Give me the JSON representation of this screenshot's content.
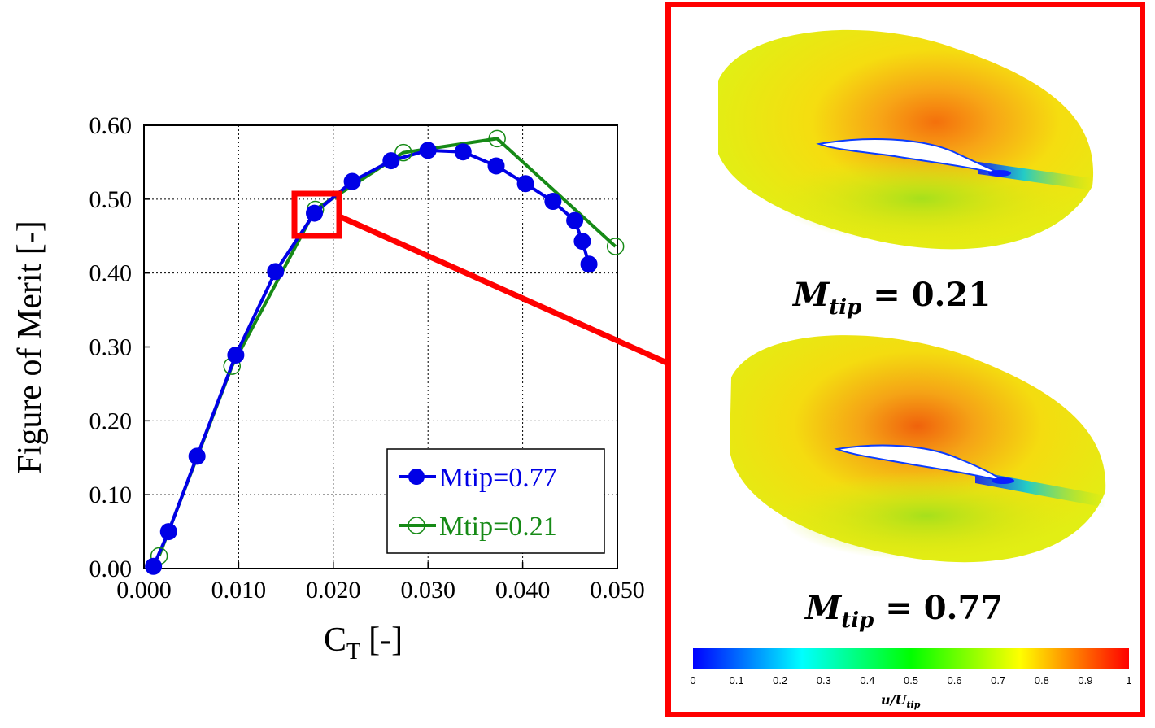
{
  "chart_data": {
    "type": "line",
    "xlabel": "C",
    "xlabel_sub": "T",
    "xlabel_unit": "[-]",
    "ylabel": "Figure of Merit [-]",
    "xlim": [
      0.0,
      0.05
    ],
    "ylim": [
      0.0,
      0.6
    ],
    "xticks": [
      "0.000",
      "0.010",
      "0.020",
      "0.030",
      "0.040",
      "0.050"
    ],
    "yticks": [
      "0.00",
      "0.10",
      "0.20",
      "0.30",
      "0.40",
      "0.50",
      "0.60"
    ],
    "grid": true,
    "legend_position": "bottom-right",
    "series": [
      {
        "name": "Mtip=0.77",
        "color": "#0000e6",
        "marker": "filled-circle",
        "x": [
          0.001,
          0.0026,
          0.0056,
          0.0097,
          0.0139,
          0.018,
          0.022,
          0.0261,
          0.03,
          0.0337,
          0.0372,
          0.0403,
          0.0432,
          0.0455,
          0.0463,
          0.047
        ],
        "y": [
          0.003,
          0.05,
          0.152,
          0.289,
          0.402,
          0.481,
          0.524,
          0.552,
          0.566,
          0.564,
          0.545,
          0.521,
          0.497,
          0.471,
          0.443,
          0.412
        ]
      },
      {
        "name": "Mtip=0.21",
        "color": "#168a16",
        "marker": "open-circle",
        "x": [
          0.0016,
          0.0093,
          0.0181,
          0.0274,
          0.0373,
          0.0498
        ],
        "y": [
          0.017,
          0.274,
          0.486,
          0.563,
          0.582,
          0.436
        ]
      }
    ]
  },
  "inset": {
    "top_label": {
      "main": "M",
      "sub": "tip",
      "value": " = 0.21"
    },
    "bottom_label": {
      "main": "M",
      "sub": "tip",
      "value": " = 0.77"
    },
    "colorbar": {
      "ticks": [
        "0",
        "0.1",
        "0.2",
        "0.3",
        "0.4",
        "0.5",
        "0.6",
        "0.7",
        "0.8",
        "0.9",
        "1"
      ],
      "title_main": "u/U",
      "title_sub": "tip",
      "colors": [
        "#0000ff",
        "#00ffff",
        "#00ff00",
        "#ffff00",
        "#ff0000"
      ]
    }
  },
  "highlight_color": "#ff0000"
}
